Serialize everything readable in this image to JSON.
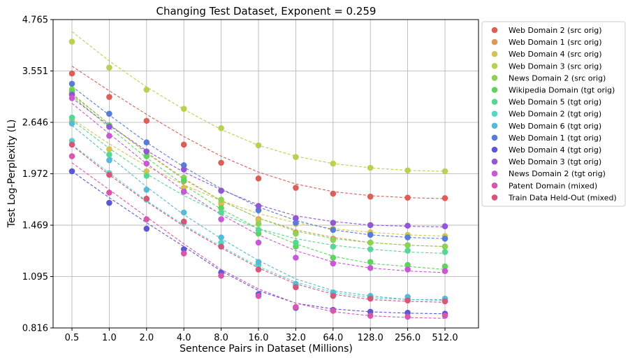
{
  "chart_data": {
    "type": "scatter",
    "title": "Changing Test Dataset, Exponent = 0.259",
    "xlabel": "Sentence Pairs in Dataset (Millions)",
    "ylabel": "Test Log-Perplexity (L)",
    "x_scale": "log",
    "y_scale": "log",
    "categories": [
      "0.5",
      "1.0",
      "2.0",
      "4.0",
      "8.0",
      "16.0",
      "32.0",
      "64.0",
      "128.0",
      "256.0",
      "512.0"
    ],
    "yticks": [
      "0.816",
      "1.095",
      "1.469",
      "1.972",
      "2.646",
      "3.551",
      "4.765"
    ],
    "ylim": [
      0.816,
      4.765
    ],
    "grid": true,
    "legend_position": "outside-right",
    "series": [
      {
        "name": "Web Domain 2 (src orig)",
        "color": "#db5f57",
        "values": [
          3.5,
          3.06,
          2.67,
          2.33,
          2.1,
          1.92,
          1.82,
          1.76,
          1.73,
          1.72,
          1.715
        ],
        "fit": [
          3.65,
          3.17,
          2.77,
          2.44,
          2.18,
          1.99,
          1.86,
          1.78,
          1.74,
          1.72,
          1.71
        ]
      },
      {
        "name": "Web Domain 1 (src orig)",
        "color": "#db9a57",
        "values": [
          3.12,
          2.6,
          2.18,
          1.89,
          1.66,
          1.52,
          1.41,
          1.36,
          1.33,
          1.31,
          1.3
        ],
        "fit": [
          3.12,
          2.62,
          2.22,
          1.91,
          1.69,
          1.53,
          1.43,
          1.37,
          1.33,
          1.31,
          1.3
        ]
      },
      {
        "name": "Web Domain 4 (src orig)",
        "color": "#d3c451",
        "values": [
          2.67,
          2.27,
          2.0,
          1.82,
          1.67,
          1.51,
          1.48,
          1.44,
          1.41,
          1.39,
          1.38
        ],
        "fit": [
          2.7,
          2.34,
          2.06,
          1.85,
          1.69,
          1.57,
          1.49,
          1.44,
          1.41,
          1.39,
          1.38
        ]
      },
      {
        "name": "Web Domain 3 (src orig)",
        "color": "#b7d151",
        "values": [
          4.2,
          3.62,
          3.19,
          2.86,
          2.56,
          2.32,
          2.17,
          2.09,
          2.04,
          2.01,
          2.0
        ],
        "fit": [
          4.45,
          3.76,
          3.24,
          2.85,
          2.54,
          2.32,
          2.18,
          2.09,
          2.04,
          2.01,
          2.0
        ]
      },
      {
        "name": "News Domain 2 (src orig)",
        "color": "#8cd158",
        "values": [
          3.2,
          2.6,
          2.24,
          1.93,
          1.7,
          1.48,
          1.4,
          1.35,
          1.33,
          1.31,
          1.3
        ],
        "fit": [
          3.1,
          2.62,
          2.23,
          1.92,
          1.69,
          1.53,
          1.42,
          1.36,
          1.33,
          1.31,
          1.3
        ]
      },
      {
        "name": "Wikipedia Domain (tgt orig)",
        "color": "#5ed45e",
        "values": [
          3.16,
          2.6,
          2.18,
          1.9,
          1.62,
          1.4,
          1.3,
          1.22,
          1.19,
          1.17,
          1.16
        ],
        "fit": [
          3.08,
          2.57,
          2.16,
          1.85,
          1.61,
          1.44,
          1.32,
          1.23,
          1.18,
          1.16,
          1.14
        ]
      },
      {
        "name": "Web Domain 5 (tgt orig)",
        "color": "#57d694",
        "values": [
          2.72,
          2.2,
          1.95,
          1.78,
          1.58,
          1.43,
          1.33,
          1.3,
          1.28,
          1.27,
          1.26
        ],
        "fit": [
          2.68,
          2.28,
          1.97,
          1.74,
          1.57,
          1.44,
          1.36,
          1.31,
          1.28,
          1.26,
          1.25
        ]
      },
      {
        "name": "Web Domain 2 (tgt orig)",
        "color": "#57d6c8",
        "values": [
          2.38,
          1.98,
          1.7,
          1.49,
          1.33,
          1.17,
          1.04,
          0.995,
          0.975,
          0.96,
          0.955
        ],
        "fit": [
          2.33,
          1.98,
          1.69,
          1.47,
          1.3,
          1.16,
          1.06,
          1.0,
          0.97,
          0.96,
          0.955
        ]
      },
      {
        "name": "Web Domain 6 (tgt orig)",
        "color": "#57bad6",
        "values": [
          2.63,
          2.13,
          1.8,
          1.58,
          1.37,
          1.19,
          1.05,
          1.0,
          0.98,
          0.975,
          0.965
        ],
        "fit": [
          2.6,
          2.18,
          1.83,
          1.56,
          1.36,
          1.2,
          1.08,
          1.01,
          0.98,
          0.96,
          0.96
        ]
      },
      {
        "name": "Web Domain 1 (tgt orig)",
        "color": "#577dd6",
        "values": [
          3.3,
          2.78,
          2.36,
          2.07,
          1.79,
          1.6,
          1.49,
          1.43,
          1.39,
          1.37,
          1.36
        ],
        "fit": [
          3.25,
          2.76,
          2.36,
          2.05,
          1.81,
          1.63,
          1.51,
          1.43,
          1.39,
          1.37,
          1.36
        ]
      },
      {
        "name": "Web Domain 4 (tgt orig)",
        "color": "#5d57d6",
        "values": [
          2.0,
          1.67,
          1.44,
          1.28,
          1.12,
          0.99,
          0.915,
          0.905,
          0.895,
          0.89,
          0.885
        ],
        "fit": [
          2.0,
          1.72,
          1.49,
          1.3,
          1.13,
          1.01,
          0.94,
          0.91,
          0.895,
          0.888,
          0.885
        ]
      },
      {
        "name": "Web Domain 3 (tgt orig)",
        "color": "#9257d6",
        "values": [
          3.1,
          2.58,
          2.24,
          2.02,
          1.79,
          1.64,
          1.53,
          1.49,
          1.47,
          1.465,
          1.46
        ],
        "fit": [
          3.04,
          2.6,
          2.25,
          1.99,
          1.8,
          1.65,
          1.55,
          1.5,
          1.47,
          1.46,
          1.455
        ]
      },
      {
        "name": "News Domain 2 (tgt orig)",
        "color": "#c957d6",
        "values": [
          3.04,
          2.45,
          2.09,
          1.78,
          1.52,
          1.33,
          1.22,
          1.18,
          1.15,
          1.14,
          1.13
        ],
        "fit": [
          2.95,
          2.48,
          2.09,
          1.79,
          1.56,
          1.39,
          1.27,
          1.19,
          1.15,
          1.13,
          1.12
        ]
      },
      {
        "name": "Patent Domain (mixed)",
        "color": "#d657ad",
        "values": [
          2.18,
          1.77,
          1.52,
          1.25,
          1.1,
          0.98,
          0.92,
          0.9,
          0.875,
          0.87,
          0.875
        ],
        "fit": [
          2.1,
          1.8,
          1.54,
          1.32,
          1.14,
          1.02,
          0.94,
          0.895,
          0.875,
          0.866,
          0.862
        ]
      },
      {
        "name": "Train Data Held-Out (mixed)",
        "color": "#d6577a",
        "values": [
          2.33,
          1.96,
          1.71,
          1.5,
          1.3,
          1.14,
          1.03,
          0.98,
          0.965,
          0.955,
          0.95
        ],
        "fit": [
          2.32,
          1.96,
          1.68,
          1.46,
          1.29,
          1.15,
          1.05,
          0.99,
          0.96,
          0.95,
          0.945
        ]
      }
    ]
  }
}
